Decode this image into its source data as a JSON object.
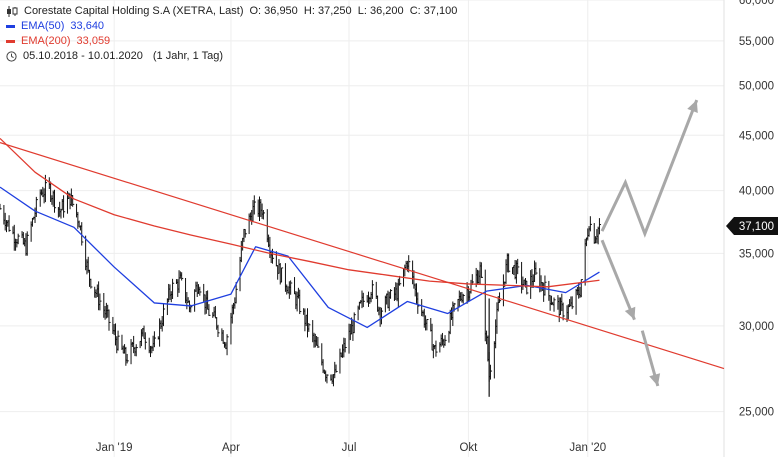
{
  "header": {
    "instrument": "Corestate Capital Holding S.A (XETRA, Last)",
    "ohlc": "O: 36,950  H: 37,250  L: 36,200  C: 37,100",
    "ema50_label": "EMA(50)",
    "ema50_value": "33,640",
    "ema200_label": "EMA(200)",
    "ema200_value": "33,059",
    "date_range": "05.10.2018 - 10.01.2020",
    "period": "(1 Jahr, 1 Tag)"
  },
  "colors": {
    "price": "#111111",
    "ema50": "#1f3fe0",
    "ema200": "#e03b2f",
    "trendline": "#e03b2f",
    "arrows": "#a8a8a8",
    "grid": "#eeeeee",
    "last_price_badge": "#111111"
  },
  "chart_data": {
    "type": "line",
    "title": "Corestate Capital Holding S.A (XETRA, Last)",
    "scale": "log",
    "ylim": [
      22700,
      60000
    ],
    "y_ticks": [
      25000,
      30000,
      35000,
      40000,
      45000,
      50000,
      55000,
      60000
    ],
    "y_tick_labels": [
      "25,000",
      "30,000",
      "35,000",
      "40,000",
      "45,000",
      "50,000",
      "55,000",
      "60,000"
    ],
    "x_tick_labels": [
      "Jan '19",
      "Apr",
      "Jul",
      "Okt",
      "Jan '20"
    ],
    "x_ticks": [
      "2019-01-01",
      "2019-04-01",
      "2019-07-01",
      "2019-10-01",
      "2020-01-01"
    ],
    "xlim": [
      "2018-10-05",
      "2020-04-15"
    ],
    "last_price": 37100,
    "last_price_label": "37,100",
    "grid": true,
    "series": [
      {
        "name": "Corestate Capital Holding S.A",
        "role": "price",
        "x": [
          "2018-10-05",
          "2018-10-15",
          "2018-10-25",
          "2018-11-05",
          "2018-11-12",
          "2018-11-20",
          "2018-11-28",
          "2018-12-05",
          "2018-12-12",
          "2018-12-19",
          "2018-12-27",
          "2019-01-03",
          "2019-01-10",
          "2019-01-17",
          "2019-01-24",
          "2019-01-31",
          "2019-02-07",
          "2019-02-14",
          "2019-02-21",
          "2019-02-28",
          "2019-03-07",
          "2019-03-14",
          "2019-03-21",
          "2019-03-28",
          "2019-04-04",
          "2019-04-11",
          "2019-04-18",
          "2019-04-25",
          "2019-05-02",
          "2019-05-09",
          "2019-05-16",
          "2019-05-23",
          "2019-05-30",
          "2019-06-06",
          "2019-06-13",
          "2019-06-20",
          "2019-06-27",
          "2019-07-04",
          "2019-07-11",
          "2019-07-18",
          "2019-07-25",
          "2019-08-01",
          "2019-08-08",
          "2019-08-15",
          "2019-08-22",
          "2019-08-29",
          "2019-09-05",
          "2019-09-12",
          "2019-09-19",
          "2019-09-26",
          "2019-10-03",
          "2019-10-10",
          "2019-10-17",
          "2019-10-24",
          "2019-10-31",
          "2019-11-07",
          "2019-11-14",
          "2019-11-21",
          "2019-11-28",
          "2019-12-05",
          "2019-12-12",
          "2019-12-19",
          "2019-12-26",
          "2020-01-02",
          "2020-01-06",
          "2020-01-10"
        ],
        "y": [
          38500,
          36500,
          35500,
          39800,
          40200,
          38300,
          39400,
          37500,
          33500,
          32000,
          30500,
          29000,
          28000,
          28800,
          29500,
          28500,
          30500,
          32500,
          33000,
          31200,
          33000,
          31000,
          30200,
          29000,
          31800,
          36500,
          38400,
          38500,
          35200,
          33500,
          32500,
          31500,
          30000,
          28600,
          27200,
          27000,
          28600,
          30000,
          31500,
          32500,
          31000,
          31800,
          32300,
          34500,
          32000,
          30200,
          28500,
          29100,
          30800,
          32100,
          32600,
          33800,
          27000,
          31200,
          34300,
          33700,
          32500,
          33400,
          32600,
          31600,
          31000,
          31200,
          32400,
          37500,
          36300,
          37100
        ]
      },
      {
        "name": "EMA(50)",
        "role": "ema50",
        "x": [
          "2018-10-05",
          "2018-11-01",
          "2018-12-01",
          "2019-01-01",
          "2019-02-01",
          "2019-03-01",
          "2019-04-01",
          "2019-04-20",
          "2019-05-15",
          "2019-06-15",
          "2019-07-15",
          "2019-08-15",
          "2019-09-15",
          "2019-10-15",
          "2019-11-15",
          "2019-12-15",
          "2020-01-10"
        ],
        "y": [
          40300,
          38300,
          37000,
          34000,
          31500,
          31300,
          32100,
          35500,
          34800,
          31200,
          29900,
          31600,
          30800,
          32300,
          32700,
          32200,
          33640
        ]
      },
      {
        "name": "EMA(200)",
        "role": "ema200",
        "x": [
          "2018-10-05",
          "2018-11-01",
          "2018-12-01",
          "2019-01-01",
          "2019-02-01",
          "2019-03-01",
          "2019-04-01",
          "2019-05-01",
          "2019-06-01",
          "2019-07-01",
          "2019-08-01",
          "2019-09-01",
          "2019-10-01",
          "2019-11-01",
          "2019-12-01",
          "2020-01-10"
        ],
        "y": [
          44700,
          41600,
          39300,
          38000,
          37100,
          36400,
          35700,
          35000,
          34400,
          33800,
          33400,
          33000,
          32800,
          32700,
          32600,
          33059
        ]
      },
      {
        "name": "",
        "role": "trendline",
        "x": [
          "2018-10-05",
          "2020-04-15"
        ],
        "y": [
          44300,
          27400
        ]
      }
    ],
    "annotations": [
      {
        "type": "arrow",
        "direction": "up",
        "x": [
          "2020-01-12",
          "2020-01-30",
          "2020-02-14",
          "2020-03-25"
        ],
        "y": [
          36700,
          40700,
          36500,
          48500
        ]
      },
      {
        "type": "arrow",
        "direction": "down",
        "x": [
          "2020-01-12",
          "2020-02-06"
        ],
        "y": [
          36000,
          30400
        ]
      },
      {
        "type": "arrow",
        "direction": "down",
        "x": [
          "2020-02-12",
          "2020-02-24"
        ],
        "y": [
          29700,
          26400
        ]
      }
    ]
  }
}
